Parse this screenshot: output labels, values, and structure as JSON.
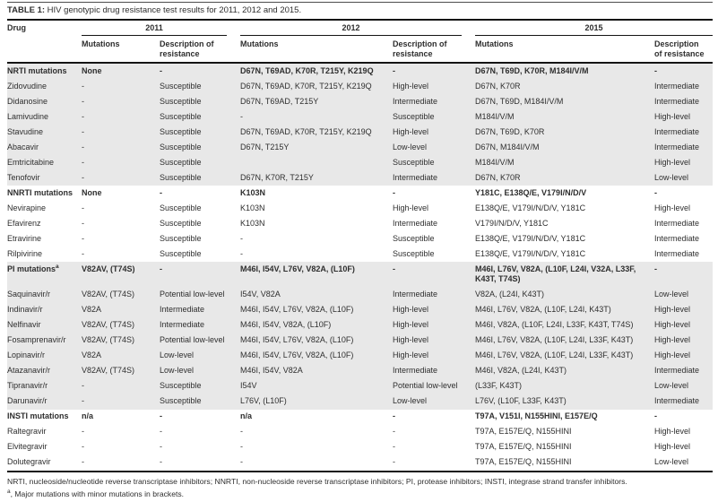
{
  "title": {
    "label": "TABLE 1:",
    "text": " HIV genotypic drug resistance test results for 2011, 2012 and 2015."
  },
  "table": {
    "header": {
      "drug": "Drug",
      "years": [
        "2011",
        "2012",
        "2015"
      ],
      "mutations": "Mutations",
      "resistance": "Description of resistance"
    },
    "sections": [
      {
        "name": "NRTI",
        "shaded": true,
        "rows": [
          {
            "drug": "NRTI mutations",
            "bold": true,
            "cells": [
              "None",
              "-",
              "D67N, T69AD, K70R, T215Y, K219Q",
              "-",
              "D67N, T69D, K70R, M184I/V/M",
              "-"
            ]
          },
          {
            "drug": "Zidovudine",
            "cells": [
              "-",
              "Susceptible",
              "D67N, T69AD, K70R, T215Y, K219Q",
              "High-level",
              "D67N, K70R",
              "Intermediate"
            ]
          },
          {
            "drug": "Didanosine",
            "cells": [
              "-",
              "Susceptible",
              "D67N, T69AD, T215Y",
              "Intermediate",
              "D67N, T69D, M184I/V/M",
              "Intermediate"
            ]
          },
          {
            "drug": "Lamivudine",
            "cells": [
              "-",
              "Susceptible",
              "-",
              "Susceptible",
              "M184I/V/M",
              "High-level"
            ]
          },
          {
            "drug": "Stavudine",
            "cells": [
              "-",
              "Susceptible",
              "D67N, T69AD, K70R, T215Y, K219Q",
              "High-level",
              "D67N, T69D, K70R",
              "Intermediate"
            ]
          },
          {
            "drug": "Abacavir",
            "cells": [
              "-",
              "Susceptible",
              "D67N, T215Y",
              "Low-level",
              "D67N, M184I/V/M",
              "Intermediate"
            ]
          },
          {
            "drug": "Emtricitabine",
            "cells": [
              "-",
              "Susceptible",
              "",
              "Susceptible",
              "M184I/V/M",
              "High-level"
            ]
          },
          {
            "drug": "Tenofovir",
            "cells": [
              "-",
              "Susceptible",
              "D67N, K70R, T215Y",
              "Intermediate",
              "D67N, K70R",
              "Low-level"
            ]
          }
        ]
      },
      {
        "name": "NNRTI",
        "shaded": false,
        "rows": [
          {
            "drug": "NNRTI mutations",
            "bold": true,
            "cells": [
              "None",
              "-",
              "K103N",
              "-",
              "Y181C, E138Q/E, V179I/N/D/V",
              "-"
            ]
          },
          {
            "drug": "Nevirapine",
            "cells": [
              "-",
              "Susceptible",
              "K103N",
              "High-level",
              "E138Q/E, V179I/N/D/V, Y181C",
              "High-level"
            ]
          },
          {
            "drug": "Efavirenz",
            "cells": [
              "-",
              "Susceptible",
              "K103N",
              "Intermediate",
              "V179I/N/D/V, Y181C",
              "Intermediate"
            ]
          },
          {
            "drug": "Etravirine",
            "cells": [
              "-",
              "Susceptible",
              "-",
              "Susceptible",
              "E138Q/E, V179I/N/D/V, Y181C",
              "Intermediate"
            ]
          },
          {
            "drug": "Rilpivirine",
            "cells": [
              "-",
              "Susceptible",
              "-",
              "Susceptible",
              "E138Q/E, V179I/N/D/V, Y181C",
              "Intermediate"
            ]
          }
        ]
      },
      {
        "name": "PI",
        "shaded": true,
        "rows": [
          {
            "drug": "PI mutations",
            "sup": "a",
            "bold": true,
            "cells": [
              "V82AV, (T74S)",
              "-",
              "M46I, I54V, L76V, V82A, (L10F)",
              "-",
              "M46I, L76V, V82A, (L10F, L24I, V32A, L33F, K43T, T74S)",
              "-"
            ]
          },
          {
            "drug": "Saquinavir/r",
            "cells": [
              "V82AV, (T74S)",
              "Potential low-level",
              "I54V, V82A",
              "Intermediate",
              "V82A, (L24I, K43T)",
              "Low-level"
            ]
          },
          {
            "drug": "Indinavir/r",
            "cells": [
              "V82A",
              "Intermediate",
              "M46I, I54V, L76V, V82A, (L10F)",
              "High-level",
              "M46I, L76V, V82A, (L10F, L24I, K43T)",
              "High-level"
            ]
          },
          {
            "drug": "Nelfinavir",
            "cells": [
              "V82AV, (T74S)",
              "Intermediate",
              "M46I, I54V, V82A, (L10F)",
              "High-level",
              "M46I, V82A, (L10F, L24I, L33F, K43T, T74S)",
              "High-level"
            ]
          },
          {
            "drug": "Fosamprenavir/r",
            "cells": [
              "V82AV, (T74S)",
              "Potential low-level",
              "M46I, I54V, L76V, V82A, (L10F)",
              "High-level",
              "M46I, L76V, V82A, (L10F, L24I, L33F, K43T)",
              "High-level"
            ]
          },
          {
            "drug": "Lopinavir/r",
            "cells": [
              "V82A",
              "Low-level",
              "M46I, I54V, L76V, V82A, (L10F)",
              "High-level",
              "M46I, L76V, V82A, (L10F, L24I, L33F, K43T)",
              "High-level"
            ]
          },
          {
            "drug": "Atazanavir/r",
            "cells": [
              "V82AV, (T74S)",
              "Low-level",
              "M46I, I54V, V82A",
              "Intermediate",
              "M46I, V82A, (L24I, K43T)",
              "Intermediate"
            ]
          },
          {
            "drug": "Tipranavir/r",
            "cells": [
              "-",
              "Susceptible",
              "I54V",
              "Potential low-level",
              "(L33F, K43T)",
              "Low-level"
            ]
          },
          {
            "drug": "Darunavir/r",
            "cells": [
              "-",
              "Susceptible",
              "L76V, (L10F)",
              "Low-level",
              "L76V, (L10F, L33F, K43T)",
              "Intermediate"
            ]
          }
        ]
      },
      {
        "name": "INSTI",
        "shaded": false,
        "rows": [
          {
            "drug": "INSTI mutations",
            "bold": true,
            "cells": [
              "n/a",
              "-",
              "n/a",
              "-",
              "T97A, V151I, N155HINI, E157E/Q",
              "-"
            ]
          },
          {
            "drug": "Raltegravir",
            "cells": [
              "-",
              "-",
              "-",
              "-",
              "T97A, E157E/Q, N155HINI",
              "High-level"
            ]
          },
          {
            "drug": "Elvitegravir",
            "cells": [
              "-",
              "-",
              "-",
              "-",
              "T97A, E157E/Q, N155HINI",
              "High-level"
            ]
          },
          {
            "drug": "Dolutegravir",
            "cells": [
              "-",
              "-",
              "-",
              "-",
              "T97A, E157E/Q, N155HINI",
              "Low-level"
            ]
          }
        ]
      }
    ]
  },
  "footer": {
    "abbreviations": "NRTI, nucleoside/nucleotide reverse transcriptase inhibitors; NNRTI, non-nucleoside reverse transcriptase inhibitors; PI, protease inhibitors; INSTI, integrase strand transfer inhibitors.",
    "note_sup": "a",
    "note_text": ", Major mutations with minor mutations in brackets."
  }
}
